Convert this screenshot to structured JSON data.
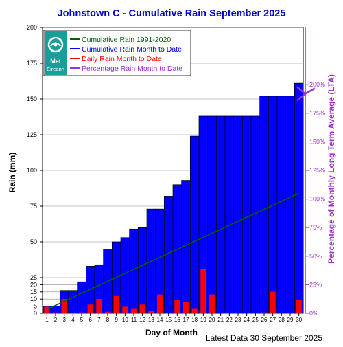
{
  "chart_data": {
    "type": "bar",
    "title": "Johnstown C - Cumulative Rain September   2025",
    "xlabel": "Day of Month",
    "ylabel": "Rain (mm)",
    "y2label": "Percentage  of Monthly Long Term Average (LTA)",
    "footer": "Latest Data 30 September 2025",
    "logo_text": [
      "Met",
      "Éireann"
    ],
    "ylim": [
      0,
      200
    ],
    "y_ticks": [
      0,
      5,
      10,
      15,
      20,
      25,
      50,
      75,
      100,
      125,
      150,
      175,
      200
    ],
    "y2_ticks": [
      "0%",
      "25%",
      "50%",
      "75%",
      "100%",
      "125%",
      "150%",
      "175%",
      "200%"
    ],
    "y2_tick_values": [
      0,
      25,
      50,
      75,
      100,
      125,
      150,
      175,
      200
    ],
    "y2_max_percent": 250,
    "legend_position": "top-left",
    "categories": [
      "1",
      "2",
      "3",
      "4",
      "5",
      "6",
      "7",
      "8",
      "9",
      "10",
      "11",
      "12",
      "13",
      "14",
      "15",
      "16",
      "17",
      "18",
      "19",
      "20",
      "21",
      "22",
      "23",
      "24",
      "25",
      "26",
      "27",
      "28",
      "29",
      "30"
    ],
    "series": [
      {
        "name": "Cumulative Rain 1991-2020",
        "type": "line",
        "color": "#006400",
        "values": [
          2.8,
          5.6,
          8.4,
          11.2,
          14.0,
          16.8,
          19.6,
          22.4,
          25.2,
          28.0,
          30.8,
          33.6,
          36.4,
          39.2,
          42.0,
          44.8,
          47.6,
          50.4,
          53.2,
          56.0,
          58.8,
          61.6,
          64.4,
          67.2,
          70.0,
          72.8,
          75.6,
          78.4,
          81.2,
          84.0
        ]
      },
      {
        "name": "Cumulative Rain Month to Date",
        "type": "bar",
        "color": "#0000ff",
        "values": [
          5,
          5,
          16,
          16,
          22,
          33,
          34,
          45,
          50,
          53,
          59,
          60,
          73,
          73,
          82,
          90,
          93,
          124,
          138,
          138,
          138,
          138,
          138,
          138,
          138,
          152,
          152,
          152,
          152,
          161
        ]
      },
      {
        "name": "Daily Rain Month to Date",
        "type": "bar",
        "color": "#ff0000",
        "values": [
          4.5,
          0.5,
          10,
          0.3,
          0.5,
          6,
          10,
          1,
          12,
          4.5,
          3.5,
          6,
          1.5,
          13,
          0.3,
          9.5,
          8,
          3.5,
          31,
          13,
          0,
          0.2,
          0.1,
          0.1,
          0.2,
          0.5,
          15,
          0,
          0.2,
          9
        ]
      },
      {
        "name": "Percentage Rain Month to Date",
        "type": "indicator",
        "color": "#9932cc",
        "value": 192
      }
    ]
  }
}
